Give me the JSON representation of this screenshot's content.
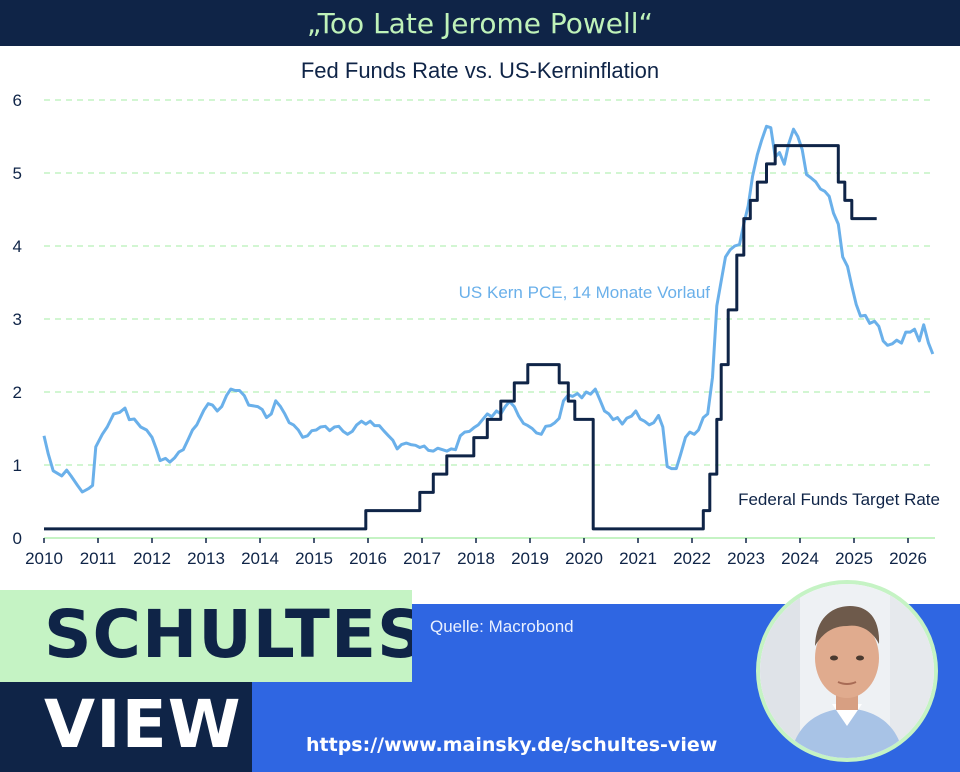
{
  "header": {
    "headline": "„Too Late Jerome Powell“"
  },
  "colors": {
    "navy": "#0f2447",
    "mint": "#c5f3c4",
    "blue": "#2f66e2",
    "pce": "#6ab0ea",
    "fed": "#0f2447",
    "grid": "#b8f0b8"
  },
  "chart_data": {
    "type": "line",
    "title": "Fed Funds Rate vs. US-Kerninflation",
    "xlim": [
      2010,
      2026.5
    ],
    "ylim": [
      0,
      6
    ],
    "grid": "horizontal dashed",
    "x_ticks": [
      "2010",
      "2011",
      "2012",
      "2013",
      "2014",
      "2015",
      "2016",
      "2017",
      "2018",
      "2019",
      "2020",
      "2021",
      "2022",
      "2023",
      "2024",
      "2025",
      "2026"
    ],
    "y_ticks": [
      "0",
      "1",
      "2",
      "3",
      "4",
      "5",
      "6"
    ],
    "series": [
      {
        "name": "US Kern PCE, 14 Monate Vorlauf",
        "points": [
          [
            2010.0,
            1.4
          ],
          [
            2010.08,
            1.15
          ],
          [
            2010.17,
            0.92
          ],
          [
            2010.33,
            0.85
          ],
          [
            2010.42,
            0.93
          ],
          [
            2010.5,
            0.85
          ],
          [
            2010.62,
            0.72
          ],
          [
            2010.71,
            0.63
          ],
          [
            2010.83,
            0.68
          ],
          [
            2010.9,
            0.72
          ],
          [
            2010.96,
            1.25
          ],
          [
            2011.08,
            1.42
          ],
          [
            2011.17,
            1.52
          ],
          [
            2011.29,
            1.7
          ],
          [
            2011.4,
            1.72
          ],
          [
            2011.5,
            1.78
          ],
          [
            2011.58,
            1.62
          ],
          [
            2011.67,
            1.63
          ],
          [
            2011.79,
            1.52
          ],
          [
            2011.9,
            1.48
          ],
          [
            2012.0,
            1.38
          ],
          [
            2012.08,
            1.22
          ],
          [
            2012.15,
            1.06
          ],
          [
            2012.25,
            1.09
          ],
          [
            2012.33,
            1.04
          ],
          [
            2012.42,
            1.1
          ],
          [
            2012.5,
            1.18
          ],
          [
            2012.58,
            1.21
          ],
          [
            2012.67,
            1.35
          ],
          [
            2012.75,
            1.48
          ],
          [
            2012.83,
            1.55
          ],
          [
            2012.96,
            1.75
          ],
          [
            2013.04,
            1.84
          ],
          [
            2013.12,
            1.82
          ],
          [
            2013.21,
            1.74
          ],
          [
            2013.29,
            1.8
          ],
          [
            2013.38,
            1.95
          ],
          [
            2013.46,
            2.04
          ],
          [
            2013.54,
            2.02
          ],
          [
            2013.62,
            2.02
          ],
          [
            2013.71,
            1.95
          ],
          [
            2013.79,
            1.82
          ],
          [
            2013.88,
            1.81
          ],
          [
            2013.96,
            1.8
          ],
          [
            2014.04,
            1.76
          ],
          [
            2014.12,
            1.65
          ],
          [
            2014.21,
            1.7
          ],
          [
            2014.29,
            1.88
          ],
          [
            2014.38,
            1.8
          ],
          [
            2014.46,
            1.7
          ],
          [
            2014.54,
            1.58
          ],
          [
            2014.62,
            1.55
          ],
          [
            2014.71,
            1.48
          ],
          [
            2014.79,
            1.38
          ],
          [
            2014.88,
            1.4
          ],
          [
            2014.96,
            1.47
          ],
          [
            2015.04,
            1.48
          ],
          [
            2015.12,
            1.52
          ],
          [
            2015.21,
            1.53
          ],
          [
            2015.29,
            1.47
          ],
          [
            2015.38,
            1.52
          ],
          [
            2015.46,
            1.53
          ],
          [
            2015.54,
            1.46
          ],
          [
            2015.62,
            1.42
          ],
          [
            2015.71,
            1.46
          ],
          [
            2015.79,
            1.55
          ],
          [
            2015.88,
            1.6
          ],
          [
            2015.96,
            1.56
          ],
          [
            2016.04,
            1.6
          ],
          [
            2016.12,
            1.54
          ],
          [
            2016.21,
            1.54
          ],
          [
            2016.29,
            1.47
          ],
          [
            2016.38,
            1.4
          ],
          [
            2016.46,
            1.34
          ],
          [
            2016.54,
            1.22
          ],
          [
            2016.62,
            1.28
          ],
          [
            2016.71,
            1.3
          ],
          [
            2016.79,
            1.28
          ],
          [
            2016.88,
            1.27
          ],
          [
            2016.96,
            1.24
          ],
          [
            2017.04,
            1.26
          ],
          [
            2017.12,
            1.2
          ],
          [
            2017.21,
            1.19
          ],
          [
            2017.29,
            1.23
          ],
          [
            2017.38,
            1.21
          ],
          [
            2017.46,
            1.19
          ],
          [
            2017.54,
            1.22
          ],
          [
            2017.62,
            1.21
          ],
          [
            2017.71,
            1.4
          ],
          [
            2017.79,
            1.45
          ],
          [
            2017.88,
            1.46
          ],
          [
            2017.96,
            1.51
          ],
          [
            2018.04,
            1.55
          ],
          [
            2018.12,
            1.62
          ],
          [
            2018.21,
            1.7
          ],
          [
            2018.29,
            1.66
          ],
          [
            2018.38,
            1.74
          ],
          [
            2018.46,
            1.7
          ],
          [
            2018.54,
            1.8
          ],
          [
            2018.62,
            1.87
          ],
          [
            2018.71,
            1.8
          ],
          [
            2018.79,
            1.67
          ],
          [
            2018.88,
            1.57
          ],
          [
            2018.96,
            1.54
          ],
          [
            2019.04,
            1.5
          ],
          [
            2019.12,
            1.44
          ],
          [
            2019.21,
            1.42
          ],
          [
            2019.29,
            1.53
          ],
          [
            2019.38,
            1.54
          ],
          [
            2019.46,
            1.58
          ],
          [
            2019.54,
            1.64
          ],
          [
            2019.62,
            1.88
          ],
          [
            2019.71,
            1.96
          ],
          [
            2019.79,
            1.94
          ],
          [
            2019.88,
            1.98
          ],
          [
            2019.96,
            1.92
          ],
          [
            2020.04,
            2.0
          ],
          [
            2020.12,
            1.97
          ],
          [
            2020.21,
            2.04
          ],
          [
            2020.29,
            1.9
          ],
          [
            2020.38,
            1.74
          ],
          [
            2020.46,
            1.7
          ],
          [
            2020.54,
            1.62
          ],
          [
            2020.62,
            1.65
          ],
          [
            2020.71,
            1.56
          ],
          [
            2020.79,
            1.64
          ],
          [
            2020.88,
            1.67
          ],
          [
            2020.96,
            1.74
          ],
          [
            2021.04,
            1.63
          ],
          [
            2021.12,
            1.6
          ],
          [
            2021.21,
            1.55
          ],
          [
            2021.29,
            1.58
          ],
          [
            2021.38,
            1.68
          ],
          [
            2021.46,
            1.52
          ],
          [
            2021.54,
            0.98
          ],
          [
            2021.62,
            0.95
          ],
          [
            2021.71,
            0.95
          ],
          [
            2021.79,
            1.15
          ],
          [
            2021.88,
            1.38
          ],
          [
            2021.96,
            1.45
          ],
          [
            2022.04,
            1.42
          ],
          [
            2022.12,
            1.48
          ],
          [
            2022.21,
            1.65
          ],
          [
            2022.29,
            1.7
          ],
          [
            2022.38,
            2.2
          ],
          [
            2022.46,
            3.18
          ],
          [
            2022.54,
            3.52
          ],
          [
            2022.62,
            3.85
          ],
          [
            2022.71,
            3.95
          ],
          [
            2022.79,
            4.0
          ],
          [
            2022.88,
            4.02
          ],
          [
            2022.96,
            4.3
          ],
          [
            2023.04,
            4.55
          ],
          [
            2023.12,
            4.95
          ],
          [
            2023.21,
            5.25
          ],
          [
            2023.29,
            5.45
          ],
          [
            2023.38,
            5.64
          ],
          [
            2023.46,
            5.62
          ],
          [
            2023.54,
            5.22
          ],
          [
            2023.62,
            5.28
          ],
          [
            2023.71,
            5.12
          ],
          [
            2023.79,
            5.4
          ],
          [
            2023.88,
            5.6
          ],
          [
            2023.96,
            5.5
          ],
          [
            2024.04,
            5.32
          ],
          [
            2024.12,
            4.98
          ],
          [
            2024.21,
            4.93
          ],
          [
            2024.29,
            4.88
          ],
          [
            2024.38,
            4.78
          ],
          [
            2024.46,
            4.75
          ],
          [
            2024.54,
            4.68
          ],
          [
            2024.62,
            4.45
          ],
          [
            2024.71,
            4.3
          ],
          [
            2024.79,
            3.85
          ],
          [
            2024.88,
            3.72
          ],
          [
            2024.96,
            3.45
          ],
          [
            2025.04,
            3.2
          ],
          [
            2025.12,
            3.04
          ],
          [
            2025.21,
            3.05
          ],
          [
            2025.29,
            2.94
          ],
          [
            2025.38,
            2.97
          ],
          [
            2025.46,
            2.9
          ],
          [
            2025.54,
            2.7
          ],
          [
            2025.62,
            2.64
          ],
          [
            2025.71,
            2.66
          ],
          [
            2025.79,
            2.71
          ],
          [
            2025.88,
            2.67
          ],
          [
            2025.96,
            2.82
          ],
          [
            2026.04,
            2.82
          ],
          [
            2026.12,
            2.86
          ],
          [
            2026.21,
            2.7
          ],
          [
            2026.29,
            2.92
          ],
          [
            2026.38,
            2.67
          ],
          [
            2026.46,
            2.52
          ]
        ]
      },
      {
        "name": "Federal Funds Target Rate",
        "points": [
          [
            2010.0,
            0.125
          ],
          [
            2015.96,
            0.125
          ],
          [
            2015.96,
            0.375
          ],
          [
            2016.96,
            0.375
          ],
          [
            2016.96,
            0.625
          ],
          [
            2017.21,
            0.625
          ],
          [
            2017.21,
            0.875
          ],
          [
            2017.46,
            0.875
          ],
          [
            2017.46,
            1.125
          ],
          [
            2017.96,
            1.125
          ],
          [
            2017.96,
            1.375
          ],
          [
            2018.21,
            1.375
          ],
          [
            2018.21,
            1.625
          ],
          [
            2018.46,
            1.625
          ],
          [
            2018.46,
            1.875
          ],
          [
            2018.71,
            1.875
          ],
          [
            2018.71,
            2.125
          ],
          [
            2018.96,
            2.125
          ],
          [
            2018.96,
            2.375
          ],
          [
            2019.54,
            2.375
          ],
          [
            2019.54,
            2.125
          ],
          [
            2019.71,
            2.125
          ],
          [
            2019.71,
            1.875
          ],
          [
            2019.83,
            1.875
          ],
          [
            2019.83,
            1.625
          ],
          [
            2020.17,
            1.625
          ],
          [
            2020.17,
            0.125
          ],
          [
            2022.21,
            0.125
          ],
          [
            2022.21,
            0.375
          ],
          [
            2022.33,
            0.375
          ],
          [
            2022.33,
            0.875
          ],
          [
            2022.46,
            0.875
          ],
          [
            2022.46,
            1.625
          ],
          [
            2022.54,
            1.625
          ],
          [
            2022.54,
            2.375
          ],
          [
            2022.67,
            2.375
          ],
          [
            2022.67,
            3.125
          ],
          [
            2022.83,
            3.125
          ],
          [
            2022.83,
            3.875
          ],
          [
            2022.96,
            3.875
          ],
          [
            2022.96,
            4.375
          ],
          [
            2023.08,
            4.375
          ],
          [
            2023.08,
            4.625
          ],
          [
            2023.21,
            4.625
          ],
          [
            2023.21,
            4.875
          ],
          [
            2023.38,
            4.875
          ],
          [
            2023.38,
            5.125
          ],
          [
            2023.54,
            5.125
          ],
          [
            2023.54,
            5.375
          ],
          [
            2024.71,
            5.375
          ],
          [
            2024.71,
            4.875
          ],
          [
            2024.83,
            4.875
          ],
          [
            2024.83,
            4.625
          ],
          [
            2024.96,
            4.625
          ],
          [
            2024.96,
            4.375
          ],
          [
            2025.42,
            4.375
          ]
        ]
      }
    ]
  },
  "footer": {
    "brand_line1": "SCHULTES",
    "brand_line2": "VIEW",
    "source": "Quelle: Macrobond",
    "url": "https://www.mainsky.de/schultes-view"
  },
  "avatar": {
    "icon": "person-portrait-icon"
  }
}
